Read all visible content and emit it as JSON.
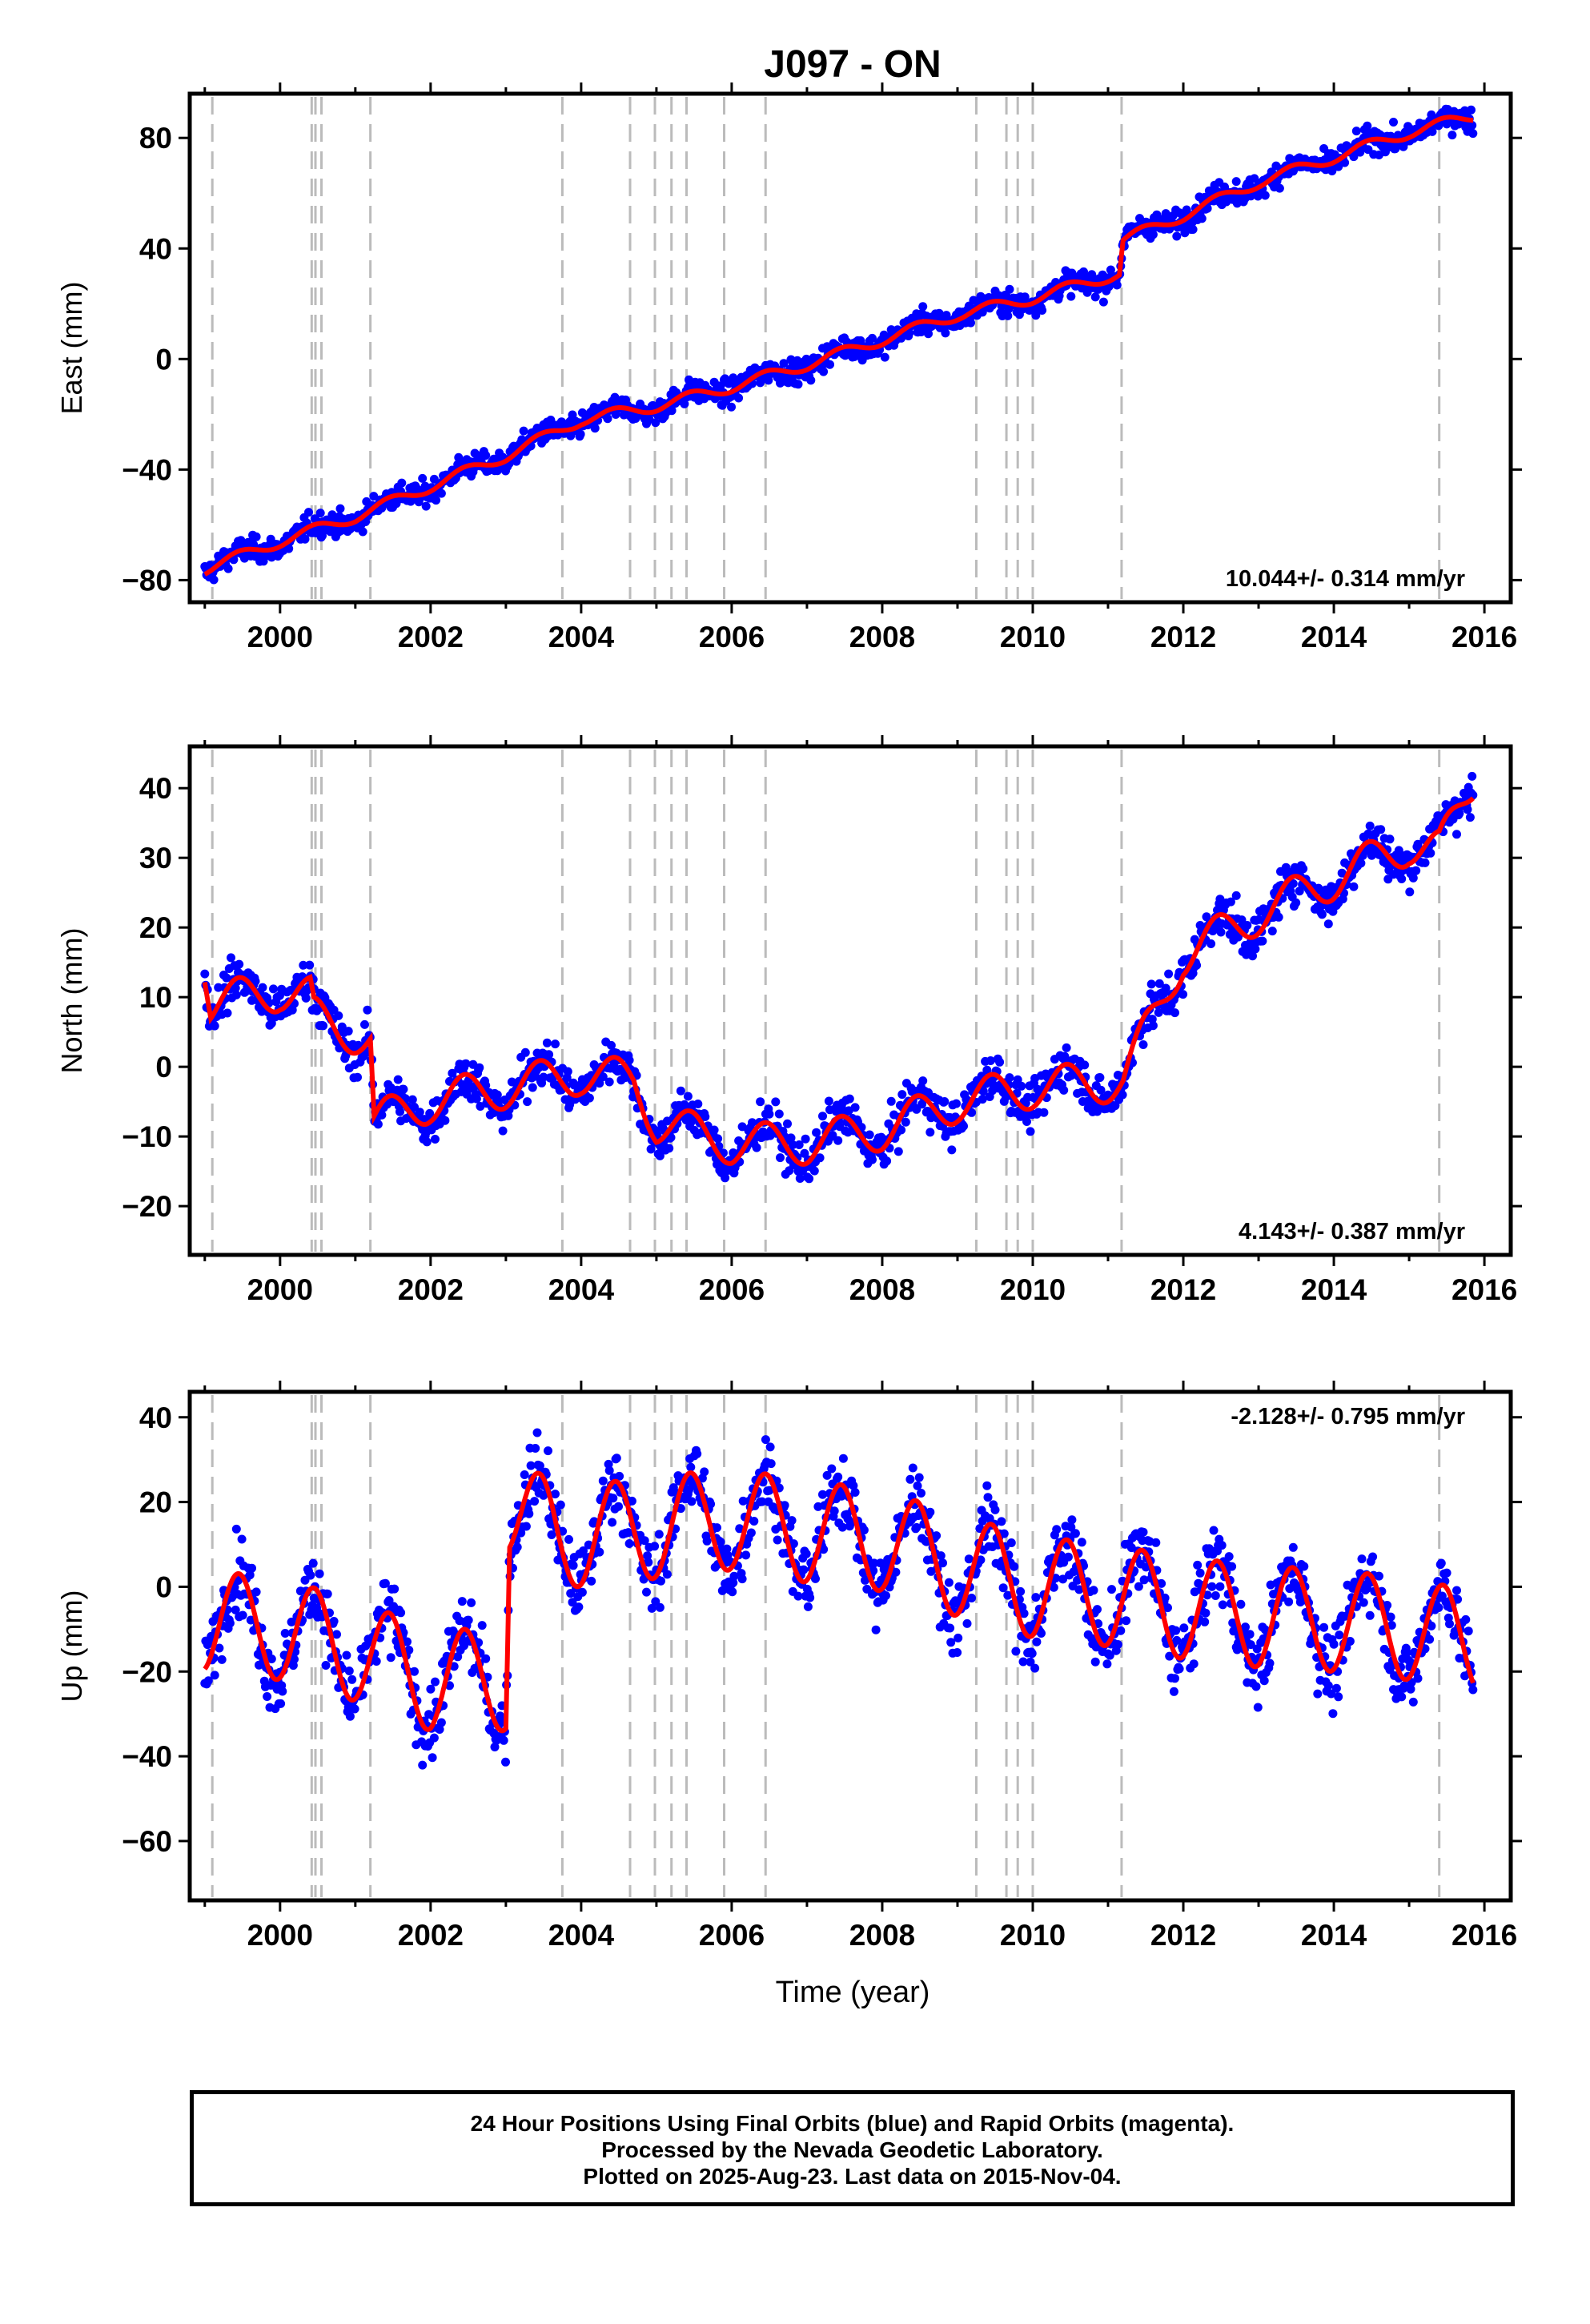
{
  "title": "J097 - ON",
  "xlabel": "Time (year)",
  "footer": {
    "line1": "24 Hour Positions Using Final Orbits (blue) and Rapid Orbits (magenta).",
    "line2": "Processed by the Nevada Geodetic Laboratory.",
    "line3": "Plotted on 2025-Aug-23. Last data on 2015-Nov-04."
  },
  "colors": {
    "data": "#0000ff",
    "model": "#ff0000",
    "steps": "#bbbbbb"
  },
  "chart_data": [
    {
      "type": "scatter",
      "ylabel": "East (mm)",
      "rate": "10.044+/- 0.314 mm/yr",
      "xlim": [
        1998.8,
        2016.35
      ],
      "ylim": [
        -88,
        96
      ],
      "yticks": [
        -80,
        -40,
        0,
        40,
        80
      ],
      "xticks": [
        2000,
        2002,
        2004,
        2006,
        2008,
        2010,
        2012,
        2014,
        2016
      ],
      "trend": [
        [
          1999.0,
          -76
        ],
        [
          2000.0,
          -66
        ],
        [
          2001.0,
          -57
        ],
        [
          2002.0,
          -46
        ],
        [
          2003.0,
          -35
        ],
        [
          2004.0,
          -22
        ],
        [
          2005.0,
          -17
        ],
        [
          2006.0,
          -10
        ],
        [
          2007.0,
          -2
        ],
        [
          2008.0,
          7
        ],
        [
          2009.0,
          16
        ],
        [
          2010.0,
          22
        ],
        [
          2011.15,
          31
        ],
        [
          2011.2,
          43
        ],
        [
          2012.0,
          52
        ],
        [
          2013.0,
          64
        ],
        [
          2014.0,
          73
        ],
        [
          2015.0,
          82
        ],
        [
          2015.85,
          88
        ]
      ],
      "seasonal_amp": 2.0,
      "noise": 3.0
    },
    {
      "type": "scatter",
      "ylabel": "North (mm)",
      "rate": "4.143+/- 0.387 mm/yr",
      "xlim": [
        1998.8,
        2016.35
      ],
      "ylim": [
        -27,
        46
      ],
      "yticks": [
        -20,
        -10,
        0,
        10,
        20,
        30,
        40
      ],
      "xticks": [
        2000,
        2002,
        2004,
        2006,
        2008,
        2010,
        2012,
        2014,
        2016
      ],
      "trend": [
        [
          1999.0,
          15
        ],
        [
          1999.08,
          9
        ],
        [
          2000.0,
          11
        ],
        [
          2000.4,
          10
        ],
        [
          2000.45,
          7
        ],
        [
          2001.2,
          4
        ],
        [
          2001.25,
          -8
        ],
        [
          2002.0,
          -5
        ],
        [
          2003.0,
          -3
        ],
        [
          2004.0,
          -1
        ],
        [
          2004.7,
          -2
        ],
        [
          2005.0,
          -8
        ],
        [
          2006.0,
          -11
        ],
        [
          2007.0,
          -11
        ],
        [
          2008.0,
          -9
        ],
        [
          2009.0,
          -5
        ],
        [
          2010.0,
          -3
        ],
        [
          2011.2,
          -2
        ],
        [
          2012.0,
          16
        ],
        [
          2013.0,
          22
        ],
        [
          2014.0,
          27
        ],
        [
          2015.0,
          32
        ],
        [
          2015.4,
          31
        ],
        [
          2015.85,
          41
        ]
      ],
      "seasonal_amp": 3.0,
      "noise": 2.2
    },
    {
      "type": "scatter",
      "ylabel": "Up (mm)",
      "rate": "-2.128+/- 0.795 mm/yr",
      "xlim": [
        1998.8,
        2016.35
      ],
      "ylim": [
        -74,
        46
      ],
      "yticks": [
        -60,
        -40,
        -20,
        0,
        20,
        40
      ],
      "xticks": [
        2000,
        2002,
        2004,
        2006,
        2008,
        2010,
        2012,
        2014,
        2016
      ],
      "trend": [
        [
          1999.0,
          -8
        ],
        [
          2000.0,
          -10
        ],
        [
          2001.0,
          -15
        ],
        [
          2002.0,
          -22
        ],
        [
          2003.0,
          -22
        ],
        [
          2003.05,
          19
        ],
        [
          2003.7,
          12
        ],
        [
          2004.0,
          12
        ],
        [
          2005.0,
          14
        ],
        [
          2006.0,
          16
        ],
        [
          2007.0,
          13
        ],
        [
          2008.0,
          11
        ],
        [
          2009.0,
          5
        ],
        [
          2010.0,
          0
        ],
        [
          2011.0,
          -2
        ],
        [
          2012.0,
          -5
        ],
        [
          2013.0,
          -7
        ],
        [
          2014.0,
          -8
        ],
        [
          2015.0,
          -10
        ],
        [
          2015.85,
          -13
        ]
      ],
      "seasonal_amp": 12.0,
      "noise": 6.0
    }
  ],
  "step_epochs": [
    1999.1,
    2000.42,
    2000.47,
    2000.55,
    2001.2,
    2003.75,
    2004.65,
    2004.98,
    2005.2,
    2005.4,
    2005.9,
    2006.45,
    2009.25,
    2009.65,
    2009.8,
    2010.0,
    2011.18,
    2015.4
  ]
}
